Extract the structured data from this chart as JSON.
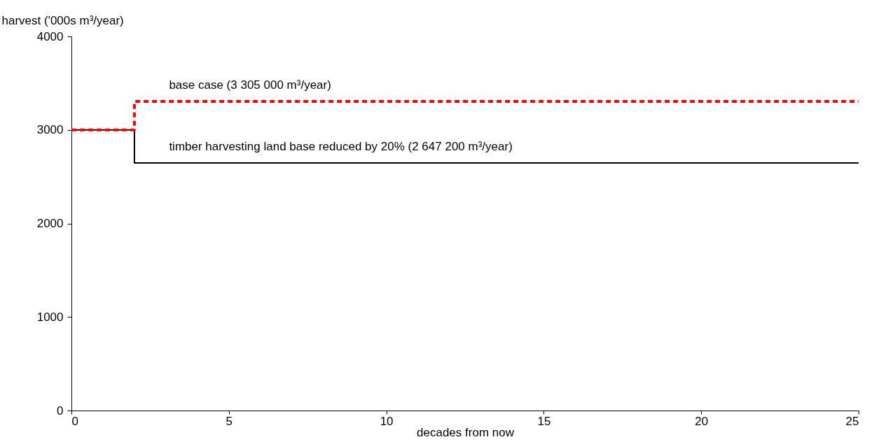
{
  "chart_data": {
    "type": "step",
    "xlabel": "decades from now",
    "ylabel": "harvest ('000s m³/year)",
    "xlim": [
      0,
      25
    ],
    "xticks": [
      0,
      5,
      10,
      15,
      20,
      25
    ],
    "ylim": [
      0,
      4000
    ],
    "yticks": [
      0,
      1000,
      2000,
      3000,
      4000
    ],
    "grid": false,
    "marker": "none",
    "series": [
      {
        "color": "#000000",
        "line_style": "solid",
        "x": [
          0,
          2,
          25
        ],
        "values": [
          3000,
          2647,
          2647
        ]
      },
      {
        "color": "#ff0000",
        "line_style": "dashed",
        "x": [
          0,
          2,
          25
        ],
        "values": [
          3000,
          3305,
          3305
        ]
      }
    ],
    "annotations": [
      {
        "text": "base case (3 305 000 m³/year)",
        "x": 3.1,
        "y": 3305
      },
      {
        "text": "timber harvesting land base reduced by 20% (2 647 200 m³/year)",
        "x": 3.1,
        "y": 2647
      }
    ]
  }
}
